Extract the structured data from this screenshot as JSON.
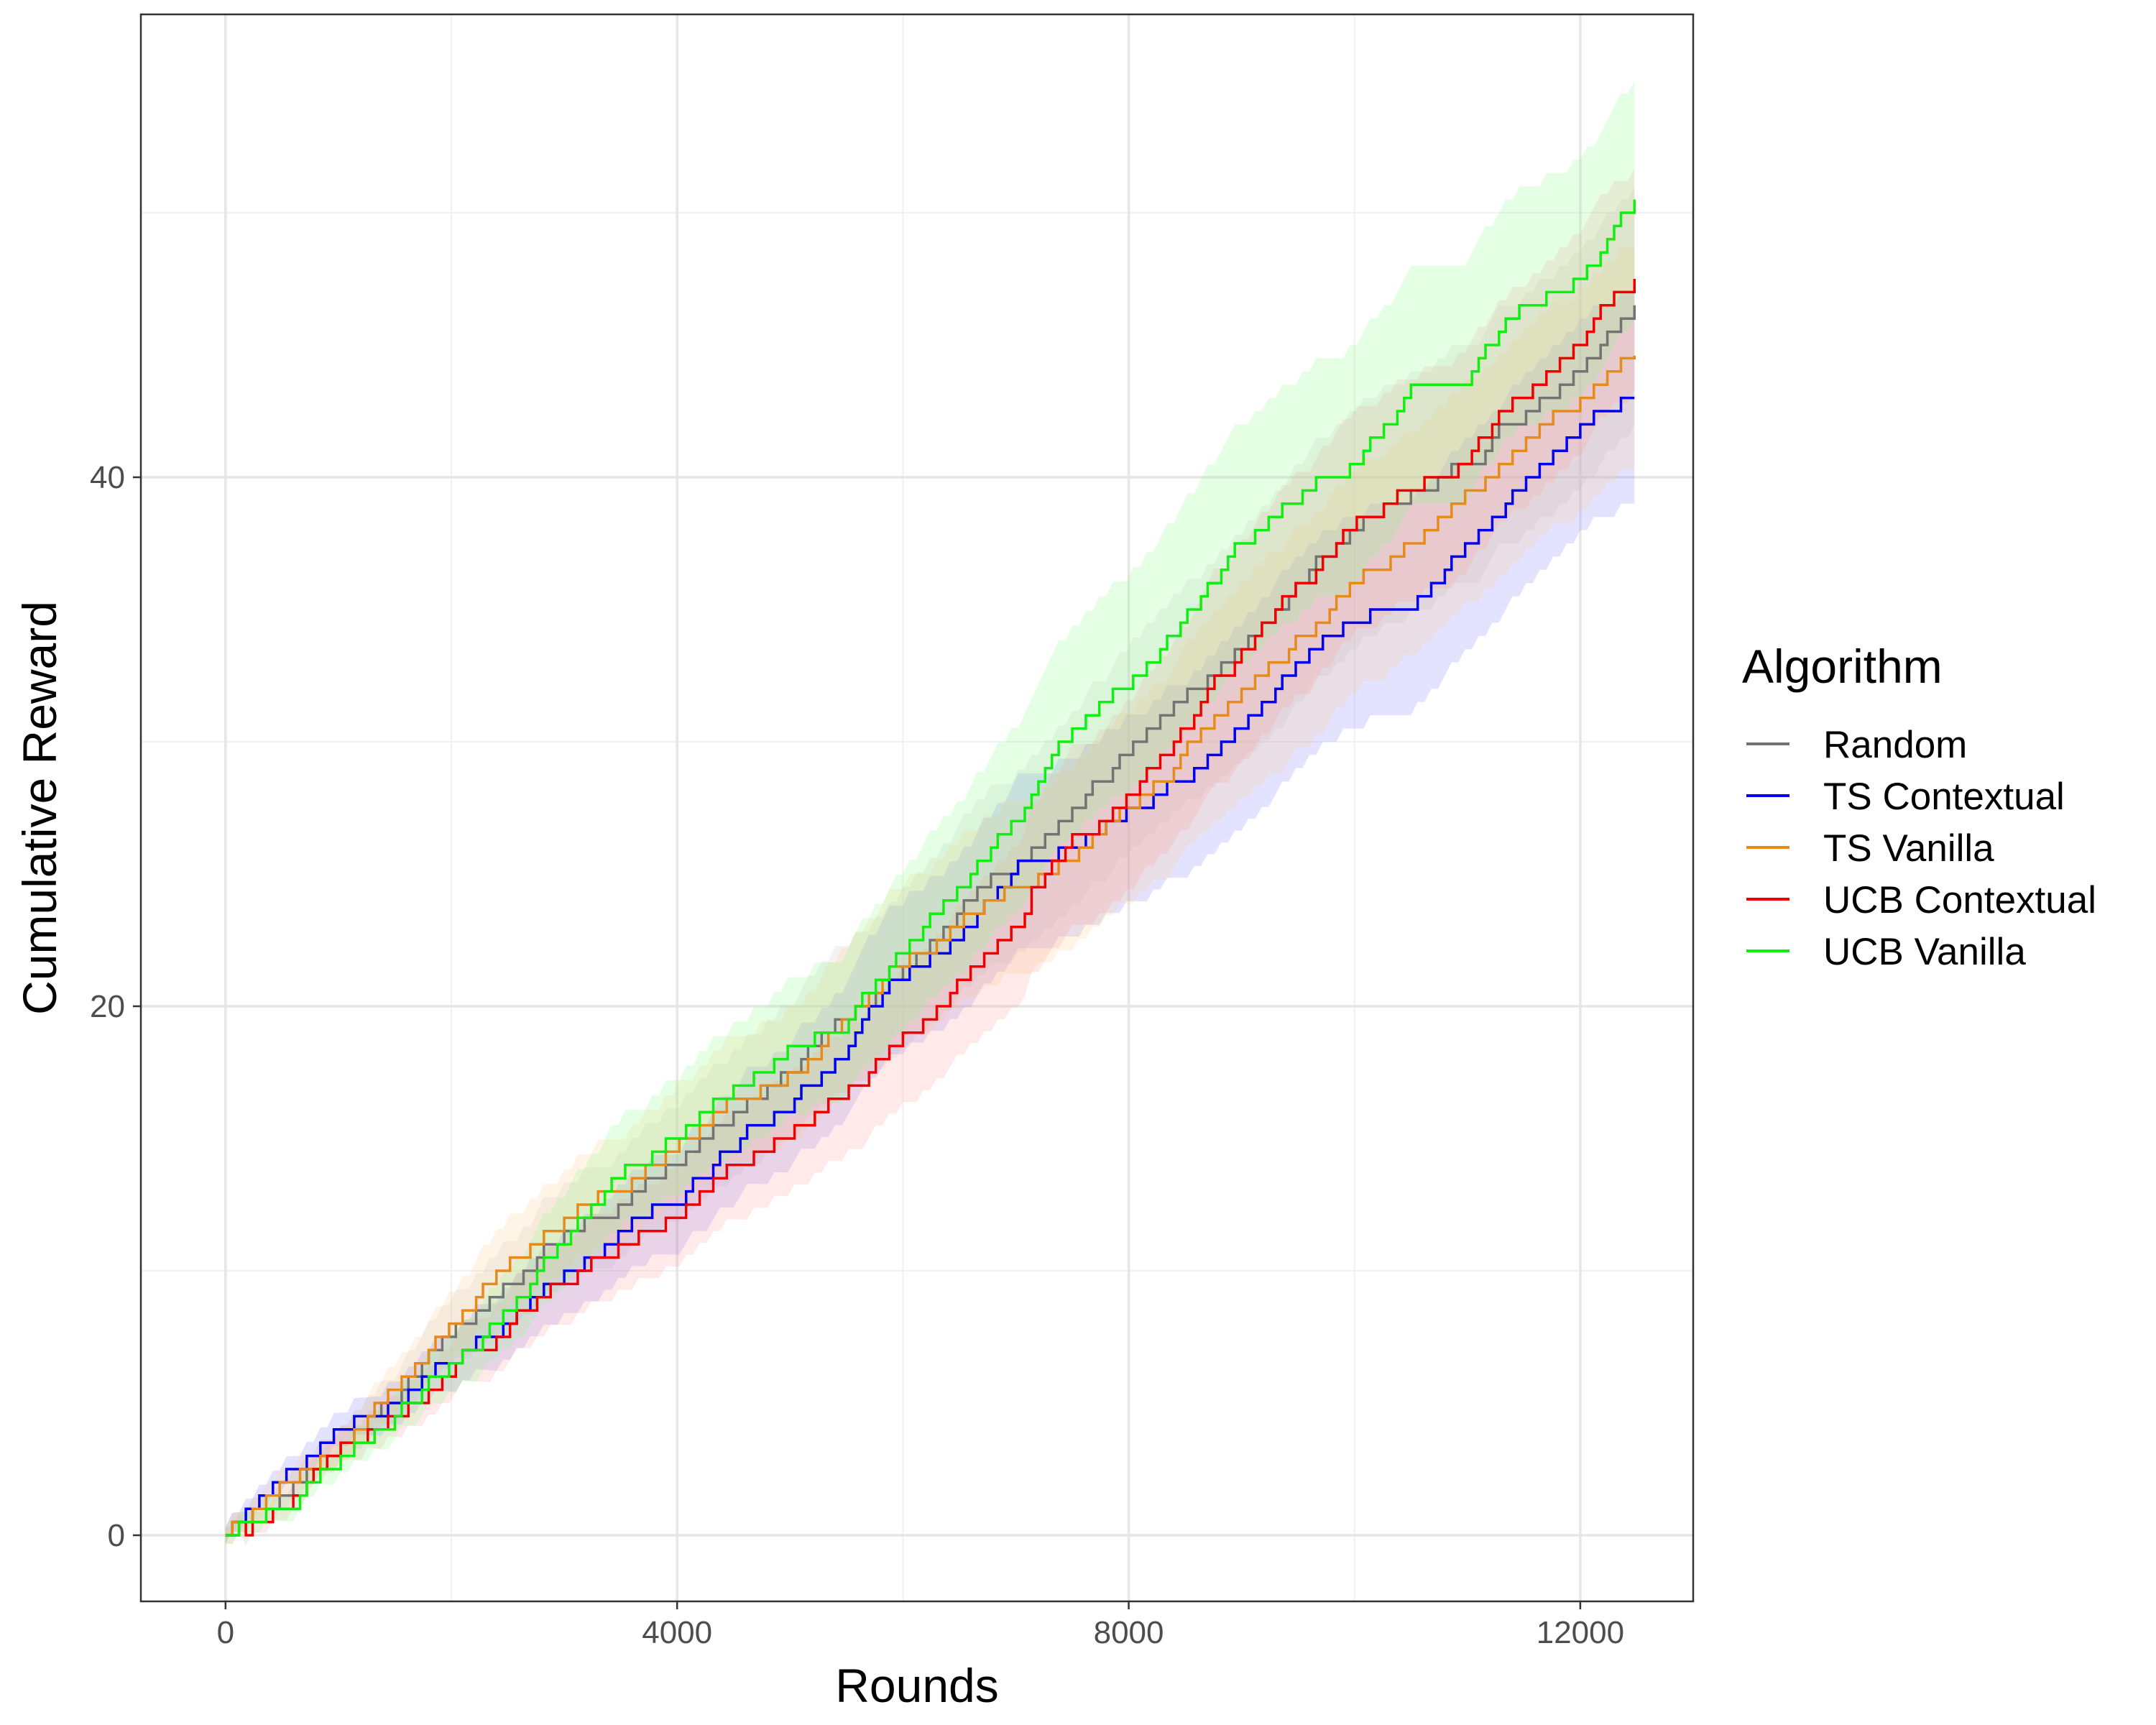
{
  "chart_data": {
    "type": "line",
    "title": "",
    "xlabel": "Rounds",
    "ylabel": "Cumulative Reward",
    "xlim": [
      -750,
      13000
    ],
    "ylim": [
      -2.5,
      57.5
    ],
    "x_ticks": [
      0,
      4000,
      8000,
      12000
    ],
    "x_tick_labels": [
      "0",
      "4000",
      "8000",
      "12000"
    ],
    "y_ticks": [
      0,
      20,
      40
    ],
    "y_tick_labels": [
      "0",
      "20",
      "40"
    ],
    "grid": true,
    "legend": {
      "title": "Algorithm",
      "position": "right"
    },
    "series": [
      {
        "name": "Random",
        "color": "#737373",
        "band_color": "#c8c8c8",
        "points": [
          [
            0,
            0
          ],
          [
            500,
            1.5
          ],
          [
            1000,
            3.5
          ],
          [
            2000,
            7.5
          ],
          [
            3000,
            11.5
          ],
          [
            4000,
            14
          ],
          [
            5000,
            17.5
          ],
          [
            6000,
            21.5
          ],
          [
            7000,
            25.5
          ],
          [
            8000,
            30
          ],
          [
            9000,
            34
          ],
          [
            10000,
            38
          ],
          [
            11000,
            40.5
          ],
          [
            11500,
            42.5
          ],
          [
            12000,
            44
          ],
          [
            12480,
            46.2
          ]
        ],
        "band": [
          2.5,
          0.8,
          0.1,
          4.5
        ]
      },
      {
        "name": "TS Contextual",
        "color": "#0000ee",
        "band_color": "#7f7fff",
        "points": [
          [
            0,
            0
          ],
          [
            300,
            1.5
          ],
          [
            600,
            2.5
          ],
          [
            1000,
            4
          ],
          [
            2000,
            6.5
          ],
          [
            3000,
            10
          ],
          [
            4000,
            13
          ],
          [
            5000,
            16.5
          ],
          [
            6000,
            21
          ],
          [
            7000,
            25
          ],
          [
            7500,
            26
          ],
          [
            8000,
            27
          ],
          [
            8500,
            28.5
          ],
          [
            9000,
            30.5
          ],
          [
            9500,
            33
          ],
          [
            10000,
            34.5
          ],
          [
            10500,
            35.5
          ],
          [
            11000,
            37.5
          ],
          [
            11500,
            39.5
          ],
          [
            12000,
            41.5
          ],
          [
            12480,
            43
          ]
        ],
        "band": [
          2.5,
          0.6,
          0.1,
          4
        ]
      },
      {
        "name": "TS Vanilla",
        "color": "#e68a1a",
        "band_color": "#ffcc88",
        "points": [
          [
            0,
            0
          ],
          [
            500,
            2
          ],
          [
            1000,
            3.5
          ],
          [
            2000,
            8
          ],
          [
            2500,
            10.5
          ],
          [
            3000,
            12
          ],
          [
            4000,
            14.5
          ],
          [
            4500,
            16.5
          ],
          [
            5000,
            17.5
          ],
          [
            6000,
            22
          ],
          [
            7000,
            24.5
          ],
          [
            8000,
            27.5
          ],
          [
            9000,
            32
          ],
          [
            10000,
            36
          ],
          [
            11000,
            39
          ],
          [
            11500,
            41.5
          ],
          [
            12000,
            43
          ],
          [
            12480,
            44.6
          ]
        ],
        "band": [
          2.5,
          0.7,
          0.1,
          4.2
        ]
      },
      {
        "name": "UCB Contextual",
        "color": "#ee0000",
        "band_color": "#ff9999",
        "points": [
          [
            0,
            0
          ],
          [
            500,
            1
          ],
          [
            1000,
            3.5
          ],
          [
            2000,
            6
          ],
          [
            3000,
            9.5
          ],
          [
            4000,
            12
          ],
          [
            5000,
            15.5
          ],
          [
            5500,
            17
          ],
          [
            6000,
            18.5
          ],
          [
            6500,
            20.5
          ],
          [
            7000,
            23
          ],
          [
            7300,
            25.5
          ],
          [
            8000,
            28
          ],
          [
            8500,
            30.5
          ],
          [
            9000,
            33.5
          ],
          [
            9500,
            36
          ],
          [
            10000,
            38
          ],
          [
            10500,
            39.5
          ],
          [
            11000,
            41
          ],
          [
            11500,
            43
          ],
          [
            12000,
            45.5
          ],
          [
            12480,
            47.5
          ]
        ],
        "band": [
          2.5,
          0.6,
          0.1,
          4.2
        ]
      },
      {
        "name": "UCB Vanilla",
        "color": "#11ee11",
        "band_color": "#88ff88",
        "points": [
          [
            0,
            0
          ],
          [
            500,
            1
          ],
          [
            1000,
            3
          ],
          [
            2000,
            6.5
          ],
          [
            3000,
            11
          ],
          [
            4000,
            15.5
          ],
          [
            5000,
            18
          ],
          [
            5500,
            19.5
          ],
          [
            6000,
            22
          ],
          [
            7000,
            27
          ],
          [
            7500,
            30
          ],
          [
            8000,
            32.5
          ],
          [
            8500,
            35
          ],
          [
            9000,
            37.5
          ],
          [
            9500,
            39.5
          ],
          [
            10000,
            40.5
          ],
          [
            10500,
            43
          ],
          [
            11000,
            44
          ],
          [
            11500,
            46.5
          ],
          [
            12000,
            47.5
          ],
          [
            12480,
            50.5
          ]
        ],
        "band": [
          2.5,
          0.7,
          0.1,
          4.5
        ]
      }
    ]
  }
}
